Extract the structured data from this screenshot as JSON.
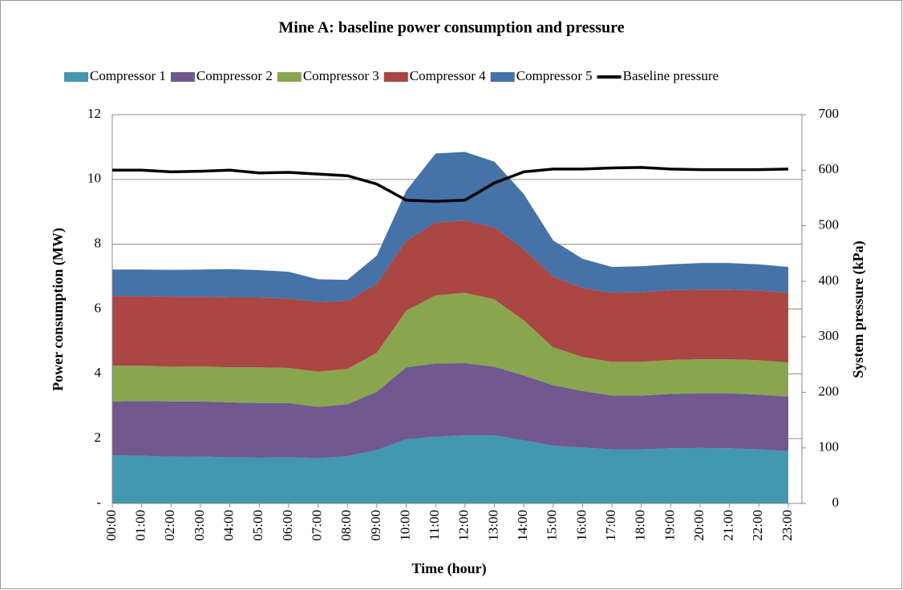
{
  "chart_data": {
    "type": "area",
    "stacked": true,
    "title": "Mine A: baseline power consumption and pressure",
    "xlabel": "Time (hour)",
    "ylabel": "Power consumption (MW)",
    "y2label": "System pressure (kPa)",
    "categories": [
      "00:00",
      "01:00",
      "02:00",
      "03:00",
      "04:00",
      "05:00",
      "06:00",
      "07:00",
      "08:00",
      "09:00",
      "10:00",
      "11:00",
      "12:00",
      "13:00",
      "14:00",
      "15:00",
      "16:00",
      "17:00",
      "18:00",
      "19:00",
      "20:00",
      "21:00",
      "22:00",
      "23:00"
    ],
    "series": [
      {
        "name": "Compressor 1",
        "color": "#4198af",
        "values": [
          1.48,
          1.47,
          1.44,
          1.45,
          1.42,
          1.41,
          1.42,
          1.39,
          1.46,
          1.65,
          1.98,
          2.06,
          2.1,
          2.1,
          1.95,
          1.78,
          1.72,
          1.67,
          1.67,
          1.7,
          1.71,
          1.7,
          1.67,
          1.61
        ]
      },
      {
        "name": "Compressor 2",
        "color": "#71588f",
        "values": [
          1.67,
          1.69,
          1.71,
          1.7,
          1.7,
          1.69,
          1.68,
          1.59,
          1.6,
          1.8,
          2.22,
          2.26,
          2.23,
          2.12,
          2.0,
          1.87,
          1.75,
          1.66,
          1.66,
          1.68,
          1.69,
          1.7,
          1.69,
          1.69
        ]
      },
      {
        "name": "Compressor 3",
        "color": "#89a54e",
        "values": [
          1.1,
          1.09,
          1.07,
          1.08,
          1.08,
          1.1,
          1.08,
          1.09,
          1.09,
          1.2,
          1.75,
          2.1,
          2.17,
          2.08,
          1.7,
          1.17,
          1.05,
          1.04,
          1.04,
          1.05,
          1.05,
          1.05,
          1.06,
          1.05
        ]
      },
      {
        "name": "Compressor 4",
        "color": "#aa4643",
        "values": [
          2.15,
          2.15,
          2.16,
          2.15,
          2.16,
          2.16,
          2.14,
          2.15,
          2.1,
          2.13,
          2.15,
          2.25,
          2.23,
          2.22,
          2.2,
          2.18,
          2.13,
          2.13,
          2.15,
          2.15,
          2.15,
          2.15,
          2.15,
          2.15
        ]
      },
      {
        "name": "Compressor 5",
        "color": "#4572a7",
        "values": [
          0.82,
          0.82,
          0.83,
          0.84,
          0.87,
          0.84,
          0.83,
          0.7,
          0.65,
          0.87,
          1.55,
          2.13,
          2.12,
          2.03,
          1.7,
          1.12,
          0.9,
          0.8,
          0.8,
          0.8,
          0.82,
          0.82,
          0.81,
          0.8
        ]
      },
      {
        "name": "Baseline pressure",
        "color": "#000000",
        "type": "line",
        "axis": "y2",
        "values": [
          600,
          600,
          597,
          598,
          600,
          595,
          596,
          593,
          590,
          575,
          546,
          544,
          546,
          577,
          597,
          602,
          602,
          604,
          605,
          602,
          601,
          601,
          601,
          602
        ]
      }
    ],
    "ylim": [
      0,
      12
    ],
    "yticks": [
      {
        "value": 0,
        "label": "-"
      },
      2,
      4,
      6,
      8,
      10,
      12
    ],
    "y2lim": [
      0,
      700
    ],
    "y2ticks": [
      0,
      100,
      200,
      300,
      400,
      500,
      600,
      700
    ],
    "grid": true,
    "legend": "top"
  }
}
